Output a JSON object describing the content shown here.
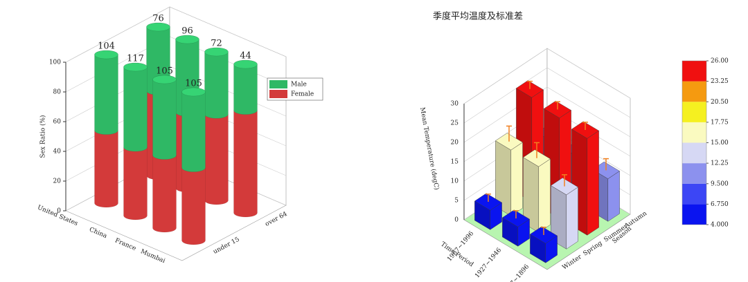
{
  "chart_data": [
    {
      "type": "cylinder3d",
      "ylabel": "Sex Ratio (%)",
      "categories": [
        "United States",
        "China",
        "France",
        "Mumbai"
      ],
      "groups": [
        "under 15",
        "over 64"
      ],
      "series": [
        {
          "name": "Male",
          "color": "#2fb865",
          "values": [
            [
              51,
              54,
              51,
              51
            ],
            [
              43,
              49,
              42,
              31
            ]
          ]
        },
        {
          "name": "Female",
          "color": "#d33a3a",
          "values": [
            [
              49,
              46,
              49,
              49
            ],
            [
              57,
              51,
              58,
              69
            ]
          ]
        }
      ],
      "top_labels": [
        [
          104,
          117,
          105,
          105
        ],
        [
          76,
          96,
          72,
          44
        ]
      ],
      "ylim": [
        0,
        100
      ],
      "yticks": [
        0,
        20,
        40,
        60,
        80,
        100
      ],
      "grid": true,
      "legend": "upper right"
    },
    {
      "type": "bar3d",
      "title": "季度平均温度及标准差",
      "xlabel": "Time Period",
      "ylabel": "Season",
      "zlabel": "Mean Temperature (degC)",
      "categories": [
        "Winter",
        "Spring",
        "Summer",
        "Autumn"
      ],
      "series": [
        {
          "name": "1887~1896",
          "values": [
            5,
            14,
            25,
            11
          ],
          "errors": [
            2,
            3,
            2,
            3
          ]
        },
        {
          "name": "1927~1946",
          "values": [
            5,
            17,
            26,
            12
          ],
          "errors": [
            2,
            4,
            2,
            4
          ]
        },
        {
          "name": "1967~1996",
          "values": [
            5,
            17,
            27,
            12
          ],
          "errors": [
            2,
            4,
            2,
            3
          ]
        }
      ],
      "error_color": "#f08020",
      "floor_color": "#b8f5b0",
      "zlim": [
        0,
        30
      ],
      "zticks": [
        0,
        5,
        10,
        15,
        20,
        25,
        30
      ],
      "grid": true,
      "colorbar": {
        "ticks": [
          {
            "value": 4,
            "label": "4.000"
          },
          {
            "value": 6.75,
            "label": "6.750"
          },
          {
            "value": 9.5,
            "label": "9.500"
          },
          {
            "value": 12.25,
            "label": "12.25"
          },
          {
            "value": 15,
            "label": "15.00"
          },
          {
            "value": 17.75,
            "label": "17.75"
          },
          {
            "value": 20.5,
            "label": "20.50"
          },
          {
            "value": 23.25,
            "label": "23.25"
          },
          {
            "value": 26,
            "label": "26.00"
          }
        ],
        "colors": [
          "#0a14f0",
          "#3c46f5",
          "#8c91ee",
          "#d6d8f4",
          "#fafac0",
          "#f5f020",
          "#f59a10",
          "#f01010"
        ]
      }
    }
  ]
}
